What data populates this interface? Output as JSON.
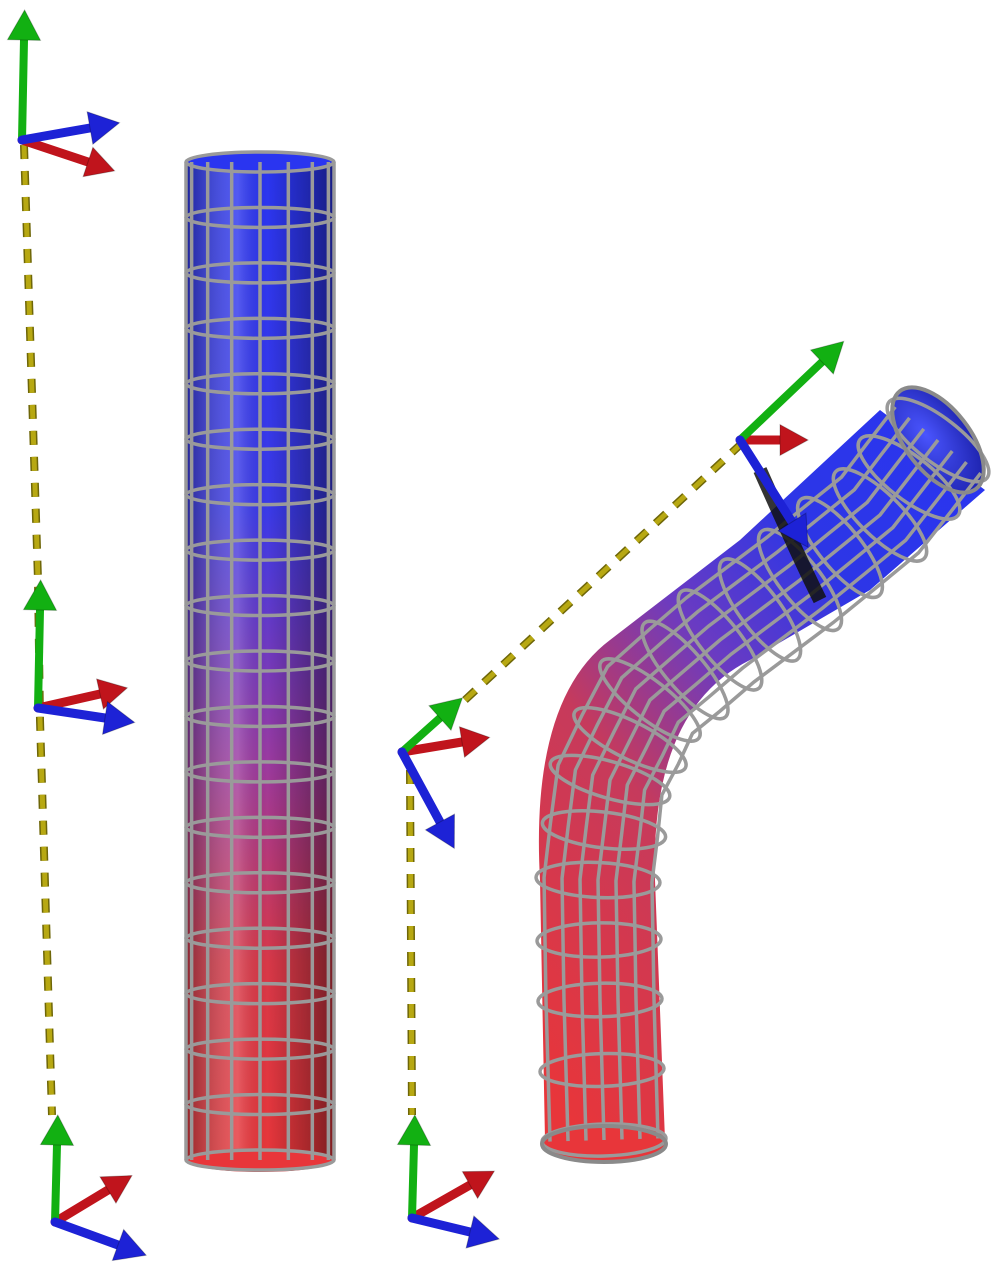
{
  "colors": {
    "background": "#ffffff",
    "axis_x": "#c0141c",
    "axis_y": "#12b012",
    "axis_z": "#1d22d6",
    "path": "#b7a812",
    "tube_top": "#2a35f0",
    "tube_bottom": "#e8363a",
    "cage": "#9a9a9a"
  },
  "icons": [
    "coordinate-frame-icon",
    "dashed-path",
    "wireframe-tube"
  ],
  "straight_tube": {
    "rings": 18,
    "columns": 8
  },
  "bent_tube": {
    "rings": 16,
    "columns": 8
  }
}
